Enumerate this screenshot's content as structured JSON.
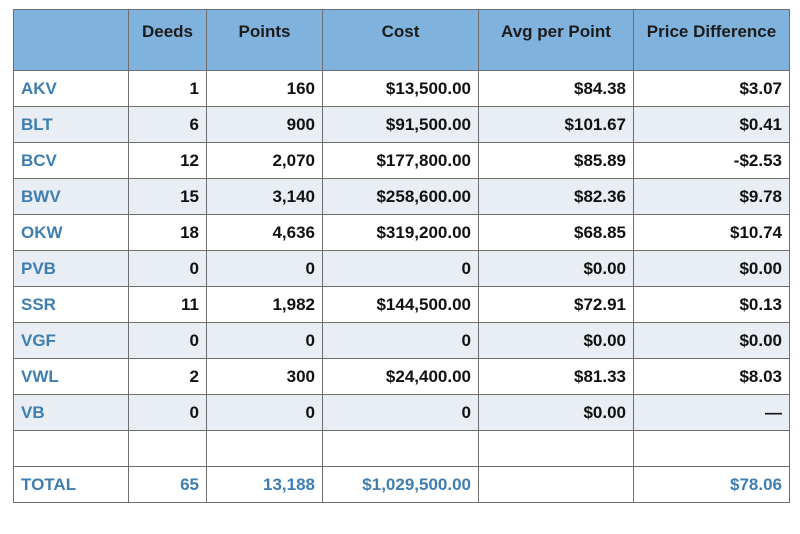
{
  "columns": [
    "",
    "Deeds",
    "Points",
    "Cost",
    "Avg per Point",
    "Price Difference"
  ],
  "rows": [
    {
      "name": "AKV",
      "deeds": "1",
      "points": "160",
      "cost": "$13,500.00",
      "avg": "$84.38",
      "diff": "$3.07"
    },
    {
      "name": "BLT",
      "deeds": "6",
      "points": "900",
      "cost": "$91,500.00",
      "avg": "$101.67",
      "diff": "$0.41"
    },
    {
      "name": "BCV",
      "deeds": "12",
      "points": "2,070",
      "cost": "$177,800.00",
      "avg": "$85.89",
      "diff": "-$2.53"
    },
    {
      "name": "BWV",
      "deeds": "15",
      "points": "3,140",
      "cost": "$258,600.00",
      "avg": "$82.36",
      "diff": "$9.78"
    },
    {
      "name": "OKW",
      "deeds": "18",
      "points": "4,636",
      "cost": "$319,200.00",
      "avg": "$68.85",
      "diff": "$10.74"
    },
    {
      "name": "PVB",
      "deeds": "0",
      "points": "0",
      "cost": "0",
      "avg": "$0.00",
      "diff": "$0.00"
    },
    {
      "name": "SSR",
      "deeds": "11",
      "points": "1,982",
      "cost": "$144,500.00",
      "avg": "$72.91",
      "diff": "$0.13"
    },
    {
      "name": "VGF",
      "deeds": "0",
      "points": "0",
      "cost": "0",
      "avg": "$0.00",
      "diff": "$0.00"
    },
    {
      "name": "VWL",
      "deeds": "2",
      "points": "300",
      "cost": "$24,400.00",
      "avg": "$81.33",
      "diff": "$8.03"
    },
    {
      "name": "VB",
      "deeds": "0",
      "points": "0",
      "cost": "0",
      "avg": "$0.00",
      "diff": "—"
    },
    {
      "name": "",
      "deeds": "",
      "points": "",
      "cost": "",
      "avg": "",
      "diff": ""
    }
  ],
  "total": {
    "name": "TOTAL",
    "deeds": "65",
    "points": "13,188",
    "cost": "$1,029,500.00",
    "avg": "",
    "diff": "$78.06"
  }
}
